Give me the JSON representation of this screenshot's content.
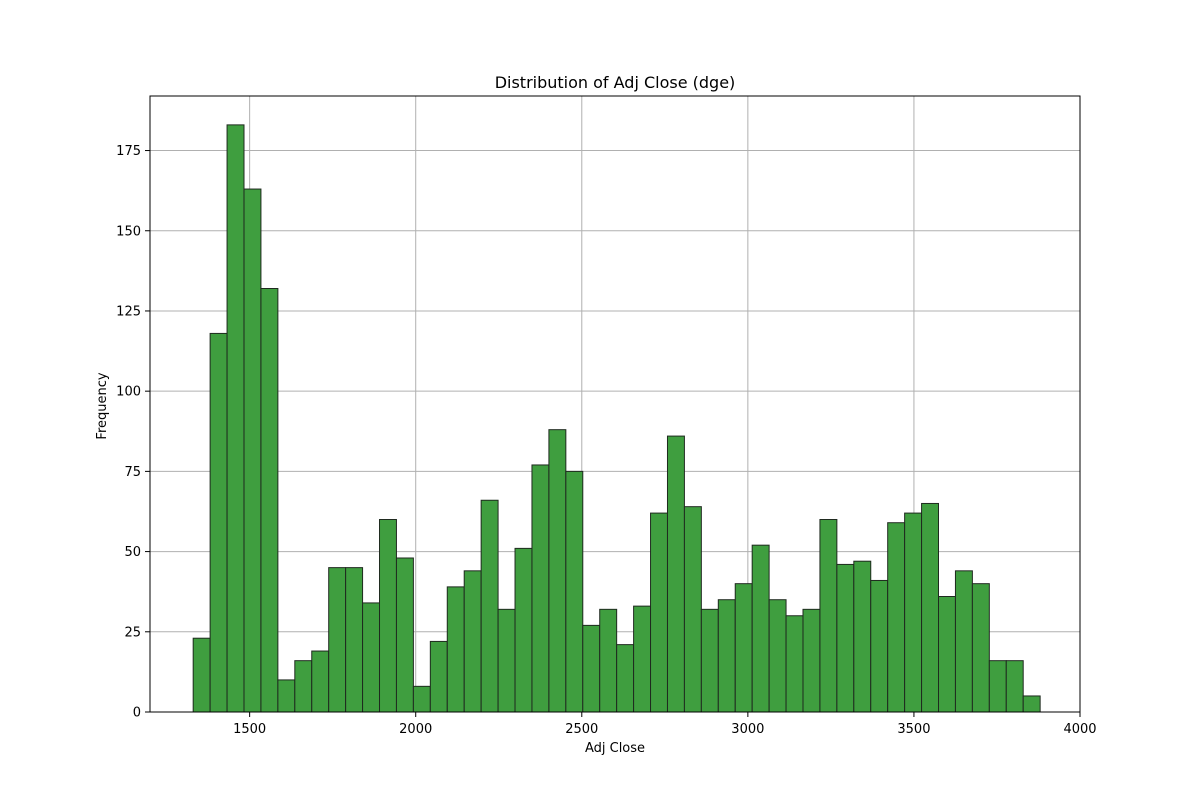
{
  "chart_data": {
    "type": "bar",
    "title": "Distribution of Adj Close (dge)",
    "xlabel": "Adj Close",
    "ylabel": "Frequency",
    "xlim": [
      1200,
      4000
    ],
    "ylim": [
      0,
      192
    ],
    "xticks": [
      1500,
      2000,
      2500,
      3000,
      3500,
      4000
    ],
    "yticks": [
      0,
      25,
      50,
      75,
      100,
      125,
      150,
      175
    ],
    "grid": true,
    "bin_start": 1330,
    "bin_width": 51,
    "values": [
      23,
      118,
      183,
      163,
      132,
      10,
      16,
      19,
      45,
      45,
      34,
      60,
      48,
      8,
      22,
      39,
      44,
      66,
      32,
      51,
      77,
      88,
      75,
      27,
      32,
      21,
      33,
      62,
      86,
      64,
      32,
      35,
      40,
      52,
      35,
      30,
      32,
      60,
      46,
      47,
      41,
      59,
      62,
      65,
      36,
      44,
      40,
      16,
      16,
      5
    ],
    "colors": {
      "bar_fill": "#3f9e3f",
      "bar_edge": "#1f2a1f",
      "grid": "#b0b0b0",
      "axes": "#000000"
    }
  }
}
